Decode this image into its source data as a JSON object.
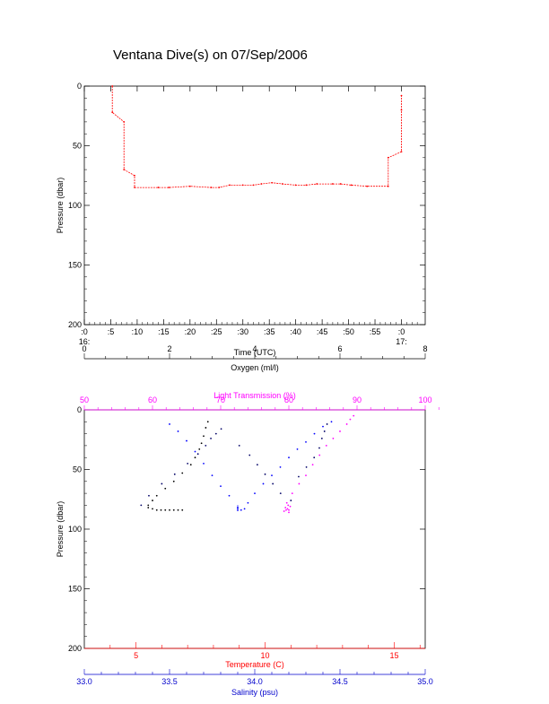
{
  "page": {
    "title": "Ventana Dive(s) on 07/Sep/2006"
  },
  "chart_data": [
    {
      "type": "line",
      "xlabel": "Time (UTC)",
      "ylabel": "Pressure (dbar)",
      "ylim": [
        200,
        0
      ],
      "x_tick_labels": [
        ":0",
        ":5",
        ":10",
        ":15",
        ":20",
        ":25",
        ":30",
        ":35",
        ":40",
        ":45",
        ":50",
        ":55",
        ":0"
      ],
      "x_tick_minutes": [
        0,
        5,
        10,
        15,
        20,
        25,
        30,
        35,
        40,
        45,
        50,
        55,
        60
      ],
      "x_hour_labels": [
        {
          "minute": 0,
          "label": "16:"
        },
        {
          "minute": 60,
          "label": "17:"
        }
      ],
      "xlim_minutes": [
        0,
        64.5
      ],
      "y_ticks": [
        0,
        50,
        100,
        150,
        200
      ],
      "color": "#ff0000",
      "series": [
        {
          "x_minutes": [
            5.3,
            5.3,
            7.5,
            7.5,
            9.5,
            9.5,
            14,
            16,
            20,
            24,
            25.5,
            27.5,
            30,
            32,
            33.5,
            35.5,
            37.5,
            40,
            42,
            44,
            47,
            48.5,
            50.5,
            53.5,
            57.5,
            57.5,
            60,
            60,
            60
          ],
          "y": [
            0,
            22,
            30,
            70,
            75,
            85,
            85,
            85,
            84,
            85,
            85,
            83,
            83,
            83,
            82,
            81,
            82,
            83,
            83,
            82,
            82,
            82,
            83,
            84,
            84,
            60,
            55,
            20,
            8
          ]
        }
      ]
    },
    {
      "type": "scatter",
      "ylabel": "Pressure (dbar)",
      "ylim": [
        200,
        0
      ],
      "y_ticks": [
        0,
        50,
        100,
        150,
        200
      ],
      "axes": [
        {
          "name": "Oxygen (ml/l)",
          "color": "#000000",
          "position": "top",
          "range": [
            0,
            8
          ],
          "ticks": [
            0,
            2,
            4,
            6,
            8
          ]
        },
        {
          "name": "Light Transmission (%)",
          "color": "#ff00ff",
          "position": "top-inner",
          "range": [
            50,
            100
          ],
          "ticks": [
            50,
            60,
            70,
            80,
            90,
            100
          ]
        },
        {
          "name": "Temperature (C)",
          "color": "#ff0000",
          "position": "bottom",
          "range": [
            3,
            16.2
          ],
          "ticks": [
            5,
            10,
            15
          ]
        },
        {
          "name": "Salinity (psu)",
          "color": "#0000cc",
          "position": "bottom-outer",
          "range": [
            33.0,
            35.0
          ],
          "ticks": [
            "33.0",
            "33.5",
            "34.0",
            "34.5",
            "35.0"
          ]
        }
      ],
      "series": [
        {
          "name": "Oxygen",
          "color": "#000000",
          "points": [
            [
              1.5,
              82
            ],
            [
              1.6,
              83
            ],
            [
              1.7,
              84
            ],
            [
              1.8,
              84
            ],
            [
              1.9,
              84
            ],
            [
              2.0,
              84
            ],
            [
              2.1,
              84
            ],
            [
              2.2,
              84
            ],
            [
              2.3,
              84
            ],
            [
              1.5,
              80
            ],
            [
              1.6,
              76
            ],
            [
              1.7,
              72
            ],
            [
              1.9,
              66
            ],
            [
              2.1,
              60
            ],
            [
              2.3,
              53
            ],
            [
              2.5,
              46
            ],
            [
              2.6,
              40
            ],
            [
              2.7,
              33
            ],
            [
              2.75,
              28
            ],
            [
              2.8,
              22
            ],
            [
              2.85,
              15
            ],
            [
              2.9,
              10
            ]
          ]
        },
        {
          "name": "Light Transmission",
          "color": "#ff00ff",
          "points": [
            [
              79.5,
              82
            ],
            [
              79.8,
              83
            ],
            [
              80.0,
              84
            ],
            [
              79.6,
              84
            ],
            [
              79.9,
              80
            ],
            [
              80.2,
              81
            ],
            [
              79.7,
              78
            ],
            [
              80.5,
              70
            ],
            [
              81.5,
              62
            ],
            [
              82.5,
              55
            ],
            [
              83.5,
              46
            ],
            [
              84.5,
              38
            ],
            [
              85.5,
              30
            ],
            [
              86.5,
              24
            ],
            [
              87.5,
              18
            ],
            [
              88.5,
              12
            ],
            [
              89.0,
              8
            ],
            [
              89.5,
              5
            ],
            [
              80.0,
              86
            ],
            [
              79.3,
              85
            ]
          ]
        },
        {
          "name": "Temperature",
          "color": "#000066",
          "points": [
            [
              5.2,
              80
            ],
            [
              5.5,
              72
            ],
            [
              6.0,
              62
            ],
            [
              6.5,
              54
            ],
            [
              7.0,
              45
            ],
            [
              7.4,
              37
            ],
            [
              7.7,
              30
            ],
            [
              7.9,
              24
            ],
            [
              8.1,
              20
            ],
            [
              8.3,
              16
            ],
            [
              9.0,
              30
            ],
            [
              9.4,
              38
            ],
            [
              9.7,
              46
            ],
            [
              10.0,
              54
            ],
            [
              10.3,
              62
            ],
            [
              10.6,
              70
            ],
            [
              11.0,
              76
            ],
            [
              11.3,
              56
            ],
            [
              11.6,
              48
            ],
            [
              11.9,
              40
            ],
            [
              12.1,
              32
            ],
            [
              12.2,
              24
            ],
            [
              12.3,
              18
            ],
            [
              12.4,
              12
            ]
          ]
        },
        {
          "name": "Salinity",
          "color": "#0000ff",
          "points": [
            [
              33.9,
              82
            ],
            [
              33.92,
              84
            ],
            [
              33.94,
              83
            ],
            [
              33.96,
              78
            ],
            [
              34.0,
              70
            ],
            [
              34.05,
              62
            ],
            [
              34.1,
              55
            ],
            [
              34.15,
              48
            ],
            [
              34.2,
              40
            ],
            [
              34.25,
              33
            ],
            [
              34.3,
              27
            ],
            [
              34.35,
              20
            ],
            [
              34.4,
              14
            ],
            [
              34.45,
              10
            ],
            [
              33.85,
              72
            ],
            [
              33.8,
              64
            ],
            [
              33.75,
              55
            ],
            [
              33.7,
              45
            ],
            [
              33.65,
              35
            ],
            [
              33.6,
              26
            ],
            [
              33.55,
              18
            ],
            [
              33.5,
              12
            ]
          ]
        }
      ],
      "markers": [
        {
          "label": "i",
          "color": "#0000ff",
          "value": 33.9,
          "y": 82
        }
      ]
    }
  ]
}
